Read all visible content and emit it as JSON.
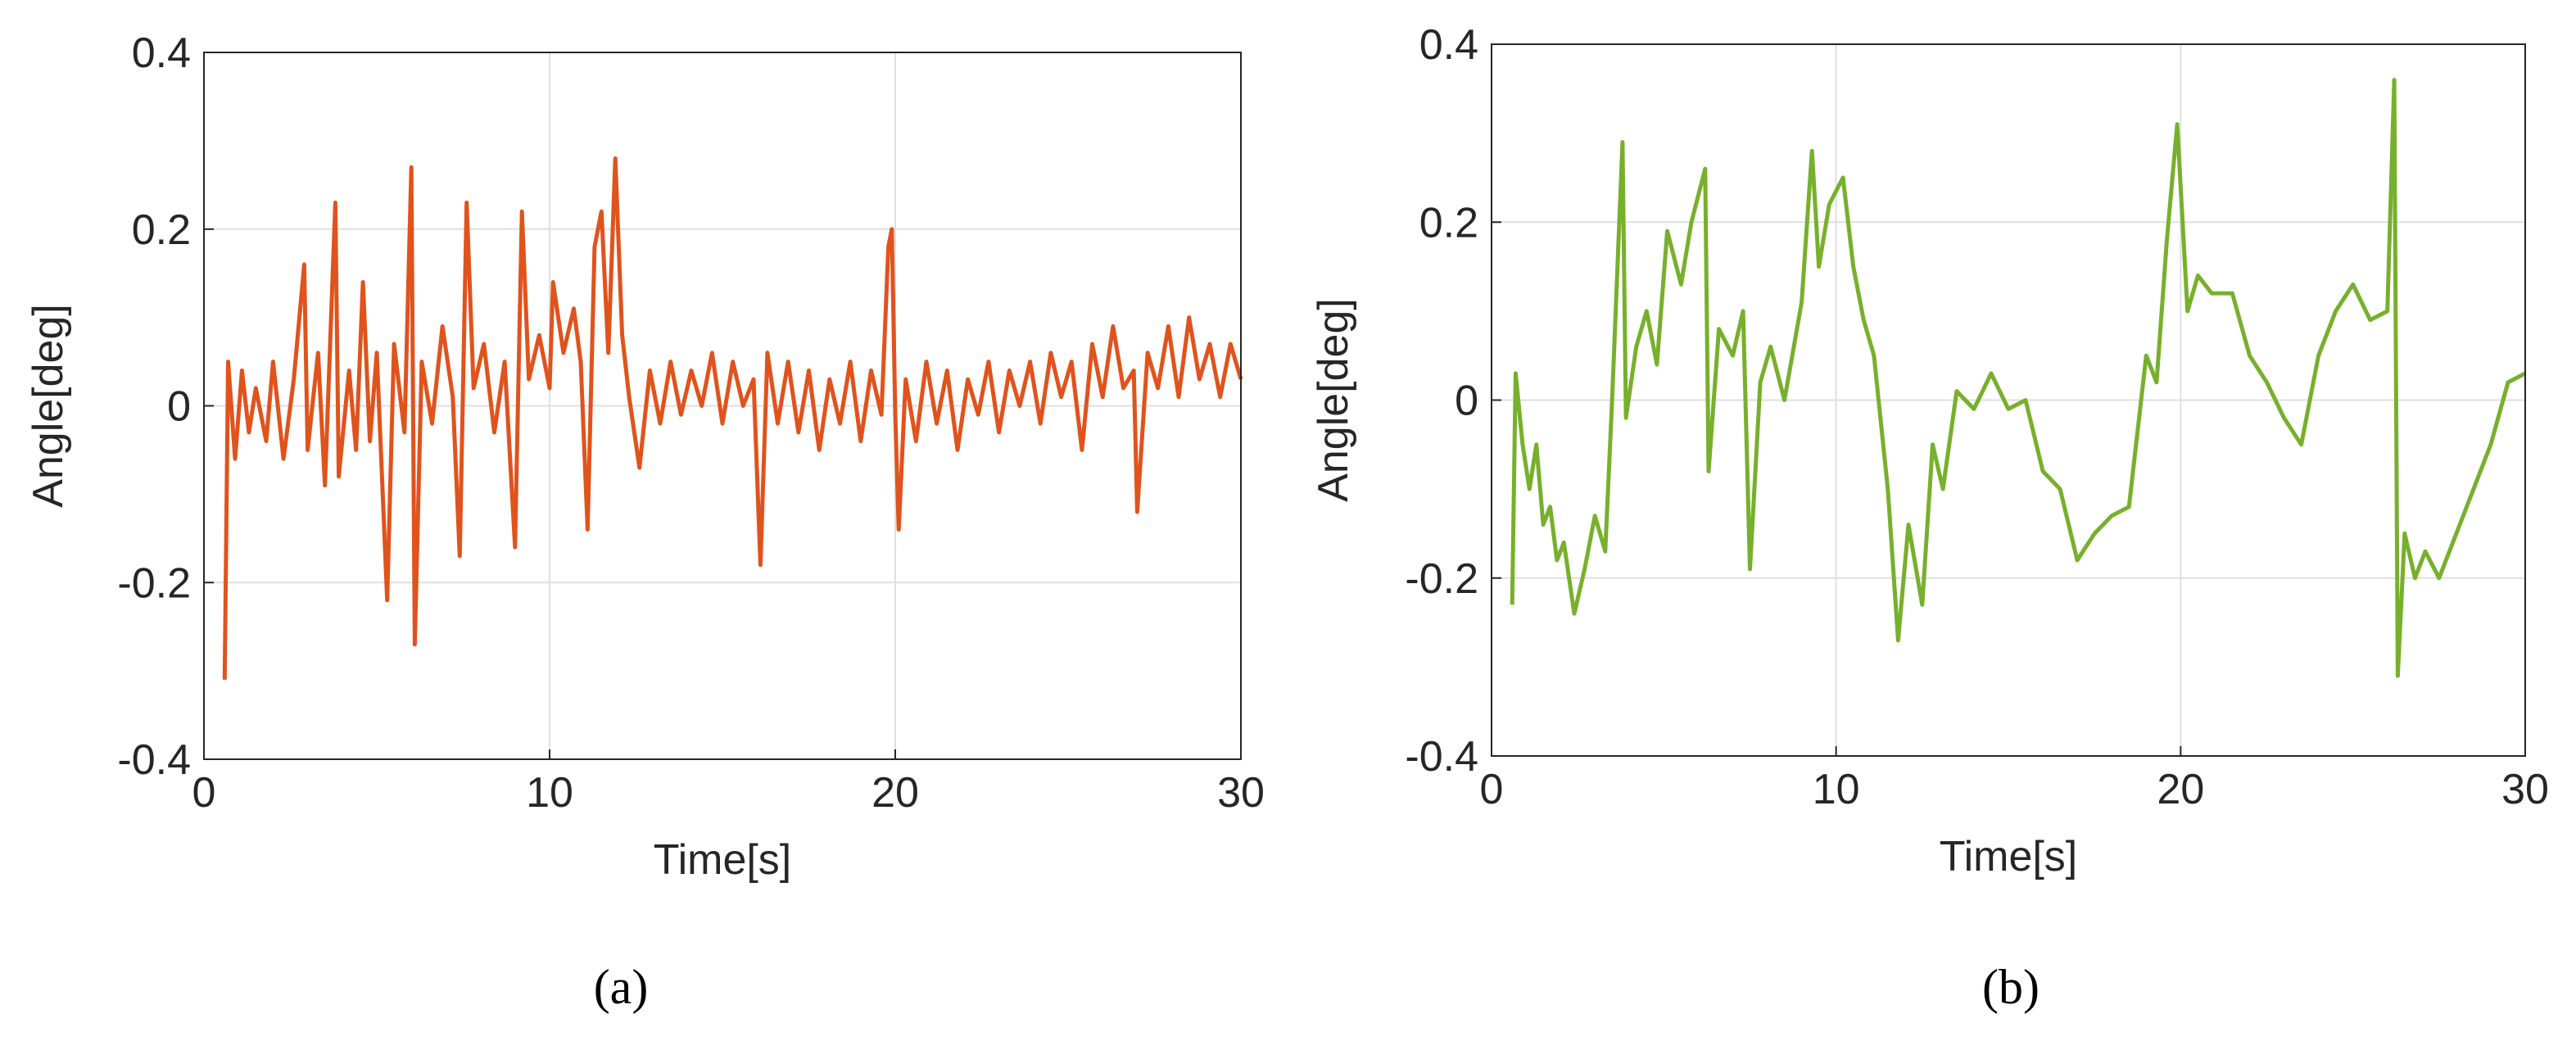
{
  "chart_data": [
    {
      "type": "line",
      "panel_label": "(a)",
      "xlabel": "Time[s]",
      "ylabel": "Angle[deg]",
      "color": "#e0531c",
      "xlim": [
        0,
        30
      ],
      "ylim": [
        -0.4,
        0.4
      ],
      "xticks": [
        0,
        10,
        20,
        30
      ],
      "yticks": [
        -0.4,
        -0.2,
        0,
        0.2,
        0.4
      ],
      "grid": true,
      "x": [
        0.6,
        0.7,
        0.9,
        1.1,
        1.3,
        1.5,
        1.8,
        2.0,
        2.3,
        2.6,
        2.9,
        3.0,
        3.3,
        3.5,
        3.8,
        3.9,
        4.2,
        4.4,
        4.6,
        4.8,
        5.0,
        5.3,
        5.5,
        5.8,
        6.0,
        6.1,
        6.3,
        6.6,
        6.9,
        7.2,
        7.4,
        7.6,
        7.8,
        8.1,
        8.4,
        8.7,
        9.0,
        9.2,
        9.4,
        9.7,
        10.0,
        10.1,
        10.4,
        10.7,
        10.9,
        11.1,
        11.3,
        11.5,
        11.7,
        11.9,
        12.1,
        12.3,
        12.6,
        12.9,
        13.2,
        13.5,
        13.8,
        14.1,
        14.4,
        14.7,
        15.0,
        15.3,
        15.6,
        15.9,
        16.1,
        16.3,
        16.6,
        16.9,
        17.2,
        17.5,
        17.8,
        18.1,
        18.4,
        18.7,
        19.0,
        19.3,
        19.6,
        19.8,
        19.9,
        20.0,
        20.1,
        20.3,
        20.6,
        20.9,
        21.2,
        21.5,
        21.8,
        22.1,
        22.4,
        22.7,
        23.0,
        23.3,
        23.6,
        23.9,
        24.2,
        24.5,
        24.8,
        25.1,
        25.4,
        25.7,
        26.0,
        26.3,
        26.6,
        26.9,
        27.0,
        27.3,
        27.6,
        27.9,
        28.2,
        28.5,
        28.8,
        29.1,
        29.4,
        29.7,
        30.0
      ],
      "values": [
        -0.31,
        0.05,
        -0.06,
        0.04,
        -0.03,
        0.02,
        -0.04,
        0.05,
        -0.06,
        0.03,
        0.16,
        -0.05,
        0.06,
        -0.09,
        0.23,
        -0.08,
        0.04,
        -0.05,
        0.14,
        -0.04,
        0.06,
        -0.22,
        0.07,
        -0.03,
        0.27,
        -0.27,
        0.05,
        -0.02,
        0.09,
        0.01,
        -0.17,
        0.23,
        0.02,
        0.07,
        -0.03,
        0.05,
        -0.16,
        0.22,
        0.03,
        0.08,
        0.02,
        0.14,
        0.06,
        0.11,
        0.05,
        -0.14,
        0.18,
        0.22,
        0.06,
        0.28,
        0.08,
        0.01,
        -0.07,
        0.04,
        -0.02,
        0.05,
        -0.01,
        0.04,
        0.0,
        0.06,
        -0.02,
        0.05,
        0.0,
        0.03,
        -0.18,
        0.06,
        -0.02,
        0.05,
        -0.03,
        0.04,
        -0.05,
        0.03,
        -0.02,
        0.05,
        -0.04,
        0.04,
        -0.01,
        0.18,
        0.2,
        -0.01,
        -0.14,
        0.03,
        -0.04,
        0.05,
        -0.02,
        0.04,
        -0.05,
        0.03,
        -0.01,
        0.05,
        -0.03,
        0.04,
        0.0,
        0.05,
        -0.02,
        0.06,
        0.01,
        0.05,
        -0.05,
        0.07,
        0.01,
        0.09,
        0.02,
        0.04,
        -0.12,
        0.06,
        0.02,
        0.09,
        0.01,
        0.1,
        0.03,
        0.07,
        0.01,
        0.07,
        0.03
      ]
    },
    {
      "type": "line",
      "panel_label": "(b)",
      "xlabel": "Time[s]",
      "ylabel": "Angle[deg]",
      "color": "#77b02c",
      "xlim": [
        0,
        30
      ],
      "ylim": [
        -0.4,
        0.4
      ],
      "xticks": [
        0,
        10,
        20,
        30
      ],
      "yticks": [
        -0.4,
        -0.2,
        0,
        0.2,
        0.4
      ],
      "grid": true,
      "x": [
        0.6,
        0.7,
        0.9,
        1.1,
        1.3,
        1.5,
        1.7,
        1.9,
        2.1,
        2.4,
        2.7,
        3.0,
        3.3,
        3.5,
        3.8,
        3.9,
        4.2,
        4.5,
        4.8,
        5.1,
        5.5,
        5.8,
        6.2,
        6.3,
        6.6,
        7.0,
        7.3,
        7.5,
        7.8,
        8.1,
        8.5,
        9.0,
        9.3,
        9.5,
        9.8,
        10.2,
        10.5,
        10.8,
        11.1,
        11.5,
        11.8,
        12.1,
        12.5,
        12.8,
        13.1,
        13.5,
        14.0,
        14.5,
        15.0,
        15.5,
        16.0,
        16.5,
        17.0,
        17.5,
        18.0,
        18.5,
        19.0,
        19.3,
        19.6,
        19.9,
        20.2,
        20.5,
        20.9,
        21.5,
        22.0,
        22.5,
        23.0,
        23.5,
        24.0,
        24.5,
        25.0,
        25.5,
        26.0,
        26.2,
        26.3,
        26.5,
        26.8,
        27.1,
        27.5,
        28.0,
        28.5,
        29.0,
        29.5,
        30.0
      ],
      "values": [
        -0.23,
        0.03,
        -0.05,
        -0.1,
        -0.05,
        -0.14,
        -0.12,
        -0.18,
        -0.16,
        -0.24,
        -0.19,
        -0.13,
        -0.17,
        0.0,
        0.29,
        -0.02,
        0.06,
        0.1,
        0.04,
        0.19,
        0.13,
        0.2,
        0.26,
        -0.08,
        0.08,
        0.05,
        0.1,
        -0.19,
        0.02,
        0.06,
        0.0,
        0.11,
        0.28,
        0.15,
        0.22,
        0.25,
        0.15,
        0.09,
        0.05,
        -0.1,
        -0.27,
        -0.14,
        -0.23,
        -0.05,
        -0.1,
        0.01,
        -0.01,
        0.03,
        -0.01,
        0.0,
        -0.08,
        -0.1,
        -0.18,
        -0.15,
        -0.13,
        -0.12,
        0.05,
        0.02,
        0.18,
        0.31,
        0.1,
        0.14,
        0.12,
        0.12,
        0.05,
        0.02,
        -0.02,
        -0.05,
        0.05,
        0.1,
        0.13,
        0.09,
        0.1,
        0.36,
        -0.31,
        -0.15,
        -0.2,
        -0.17,
        -0.2,
        -0.15,
        -0.1,
        -0.05,
        0.02,
        0.03
      ]
    }
  ]
}
